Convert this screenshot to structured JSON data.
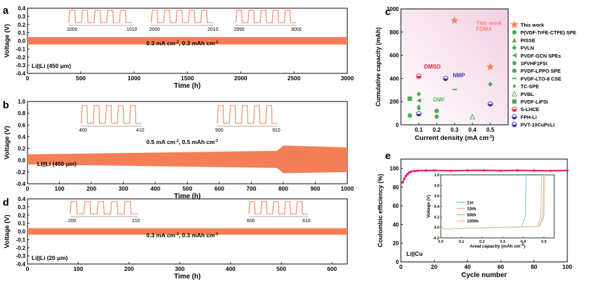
{
  "chart_data": [
    {
      "panel": "a",
      "type": "line",
      "xlabel": "Time (h)",
      "ylabel": "Voltage (V)",
      "xlim": [
        0,
        3000
      ],
      "ylim": [
        -0.4,
        0.4
      ],
      "xticks": [
        0,
        500,
        1000,
        1500,
        2000,
        2500,
        3000
      ],
      "yticks": [
        -0.4,
        -0.3,
        -0.2,
        -0.1,
        0.0,
        0.1,
        0.2,
        0.3,
        0.4
      ],
      "band": {
        "low": -0.045,
        "high": 0.045
      },
      "condition": "0.3 mA cm⁻², 0.3 mAh cm⁻²",
      "cell_label": "Li||Li (450 μm)",
      "insets": [
        {
          "start": "1000",
          "end": "1010"
        },
        {
          "start": "2000",
          "end": "2010"
        },
        {
          "start": "2990",
          "end": "3000"
        }
      ],
      "color": "#f47f57"
    },
    {
      "panel": "b",
      "type": "line",
      "xlabel": "Time (h)",
      "ylabel": "Voltage (V)",
      "xlim": [
        0,
        1000
      ],
      "ylim": [
        -0.4,
        1.0
      ],
      "xticks": [
        0,
        100,
        200,
        300,
        400,
        500,
        600,
        700,
        800,
        900,
        1000
      ],
      "yticks": [
        -0.4,
        -0.2,
        0.0,
        0.2,
        0.4,
        0.6,
        0.8,
        1.0
      ],
      "band": {
        "low_start": -0.07,
        "high_start": 0.1,
        "low_end": -0.2,
        "high_end": 0.22
      },
      "condition": "0.5 mA cm⁻², 0.5 mAh cm⁻²",
      "cell_label": "Li||Li (450 μm)",
      "insets": [
        {
          "start": "400",
          "end": "410"
        },
        {
          "start": "900",
          "end": "910"
        }
      ],
      "color": "#f47f57"
    },
    {
      "panel": "d",
      "type": "line",
      "xlabel": "Time (h)",
      "ylabel": "Voltage (V)",
      "xlim": [
        0,
        630
      ],
      "ylim": [
        -0.4,
        0.4
      ],
      "xticks": [
        0,
        100,
        200,
        300,
        400,
        500,
        600
      ],
      "yticks": [
        -0.4,
        -0.3,
        -0.2,
        -0.1,
        0.0,
        0.1,
        0.2,
        0.3,
        0.4
      ],
      "band": {
        "low": -0.04,
        "high": 0.04
      },
      "condition": "0.3 mA cm⁻², 0.3 mAh cm⁻²",
      "cell_label": "Li||Li (20 μm)",
      "insets": [
        {
          "start": "200",
          "end": "210"
        },
        {
          "start": "600",
          "end": "610"
        }
      ],
      "color": "#f47f57"
    },
    {
      "panel": "c",
      "type": "scatter",
      "xlabel": "Current density (mA cm⁻²)",
      "ylabel": "Cumulative capacity (mAh)",
      "xlim": [
        0,
        0.6
      ],
      "ylim": [
        0,
        1000
      ],
      "xticks": [
        0.1,
        0.2,
        0.3,
        0.4,
        0.5
      ],
      "yticks": [
        0,
        200,
        400,
        600,
        800,
        1000
      ],
      "annotations": [
        {
          "text": "This work",
          "x": 0.42,
          "y": 860,
          "color": "#ff7f7f"
        },
        {
          "text": "FDMA",
          "x": 0.42,
          "y": 810,
          "color": "#ff7f7f"
        },
        {
          "text": "DMSO",
          "x": 0.13,
          "y": 485,
          "color": "#e0203c"
        },
        {
          "text": "NMP",
          "x": 0.29,
          "y": 410,
          "color": "#3535b0"
        },
        {
          "text": "DMF",
          "x": 0.18,
          "y": 200,
          "color": "#5bbd5b"
        }
      ],
      "series": [
        {
          "name": "This work",
          "marker": "star",
          "color": "#f4845f",
          "points": [
            [
              0.3,
              900
            ],
            [
              0.5,
              500
            ]
          ]
        },
        {
          "name": "P(VDF-TrFE-CTFE) SPE",
          "marker": "circle",
          "color": "#4caf50",
          "points": [
            [
              0.05,
              80
            ]
          ]
        },
        {
          "name": "PISSE",
          "marker": "triangle",
          "color": "#4caf50",
          "points": [
            [
              0.1,
              160
            ]
          ]
        },
        {
          "name": "PVLN",
          "marker": "diamond",
          "color": "#4caf50",
          "points": [
            [
              0.5,
              350
            ],
            [
              0.1,
              265
            ]
          ]
        },
        {
          "name": "PVDF-GCN SPEs",
          "marker": "triangle-left",
          "color": "#4caf50",
          "points": [
            [
              0.1,
              210
            ]
          ]
        },
        {
          "name": "1PVHF1FSI",
          "marker": "hexagon",
          "color": "#4caf50",
          "points": [
            [
              0.2,
              70
            ]
          ]
        },
        {
          "name": "PVDF-LPPO SPE",
          "marker": "circle",
          "color": "#4caf50",
          "points": [
            [
              0.2,
              120
            ]
          ]
        },
        {
          "name": "PVDF-LTO-8 CSE",
          "marker": "dash",
          "color": "#4caf50",
          "points": [
            [
              0.3,
              305
            ]
          ]
        },
        {
          "name": "TC-SPE",
          "marker": "square-small",
          "color": "#4caf50",
          "points": [
            [
              0.1,
              140
            ]
          ]
        },
        {
          "name": "PVBL",
          "marker": "triangle-outline",
          "color": "#4caf50",
          "points": [
            [
              0.4,
              70
            ]
          ]
        },
        {
          "name": "PVDF-LiFSI",
          "marker": "square",
          "color": "#4caf50",
          "points": [
            [
              0.05,
              225
            ]
          ]
        },
        {
          "name": "S-LHCE",
          "marker": "half-red",
          "color": "#e0203c",
          "points": [
            [
              0.1,
              420
            ]
          ]
        },
        {
          "name": "FPH-Li",
          "marker": "half-blue",
          "color": "#3535b0",
          "points": [
            [
              0.1,
              95
            ],
            [
              0.5,
              180
            ]
          ]
        },
        {
          "name": "PVT-10CuPcLi",
          "marker": "half-blue",
          "color": "#3535b0",
          "points": [
            [
              0.25,
              400
            ]
          ]
        }
      ]
    },
    {
      "panel": "e",
      "type": "line",
      "xlabel": "Cycle number",
      "ylabel": "Coulombic efficiency (%)",
      "xlim": [
        0,
        100
      ],
      "ylim": [
        0,
        110
      ],
      "xticks": [
        0,
        20,
        40,
        60,
        80,
        100
      ],
      "yticks": [
        0,
        20,
        40,
        60,
        80,
        100
      ],
      "cell_label": "Li||Cu",
      "series": [
        {
          "name": "CE",
          "color": "#e91e7a",
          "x": [
            1,
            2,
            3,
            4,
            5,
            6,
            8,
            10,
            15,
            20,
            30,
            40,
            50,
            60,
            70,
            80,
            90,
            100
          ],
          "y": [
            85,
            89,
            92,
            94,
            95.5,
            96.5,
            97.2,
            97.6,
            97.8,
            97.9,
            97.5,
            97.8,
            98,
            97.6,
            97.9,
            97.7,
            97.5,
            97.8
          ]
        }
      ],
      "inset": {
        "xlabel": "Areal capacity (mAh cm⁻²)",
        "ylabel": "Voltage (V)",
        "xlim": [
          0,
          0.55
        ],
        "ylim": [
          -0.2,
          1.0
        ],
        "xticks": [
          0.0,
          0.1,
          0.2,
          0.3,
          0.4,
          0.5
        ],
        "yticks": [
          -0.2,
          0.0,
          0.2,
          0.4,
          0.6,
          0.8,
          1.0
        ],
        "series": [
          {
            "name": "1st",
            "color": "#7ecfd6",
            "cutoff": 0.41
          },
          {
            "name": "10th",
            "color": "#f2b6b0",
            "cutoff": 0.485
          },
          {
            "name": "50th",
            "color": "#a5cf8e",
            "cutoff": 0.495
          },
          {
            "name": "100th",
            "color": "#f7c59f",
            "cutoff": 0.5
          }
        ]
      }
    }
  ]
}
